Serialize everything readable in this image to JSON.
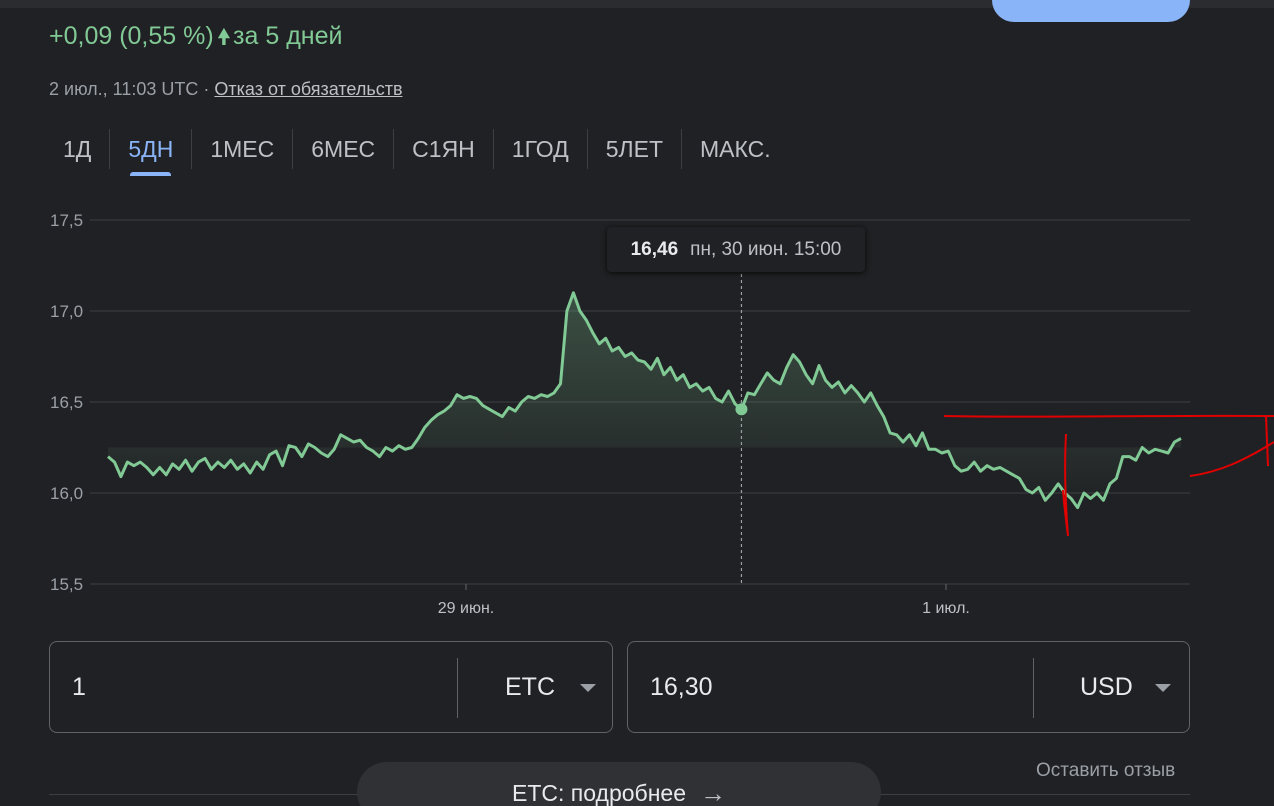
{
  "summary": {
    "change_text": "+0,09 (0,55 %)",
    "change_arrow": "arrow-up-icon",
    "change_period": "за 5 дней",
    "timestamp": "2 июл., 11:03 UTC",
    "separator": " · ",
    "disclaimer": "Отказ от обязательств"
  },
  "tabs": [
    {
      "label": "1Д",
      "active": false
    },
    {
      "label": "5ДН",
      "active": true
    },
    {
      "label": "1МЕС",
      "active": false
    },
    {
      "label": "6МЕС",
      "active": false
    },
    {
      "label": "С1ЯН",
      "active": false
    },
    {
      "label": "1ГОД",
      "active": false
    },
    {
      "label": "5ЛЕТ",
      "active": false
    },
    {
      "label": "МАКС.",
      "active": false
    }
  ],
  "tooltip": {
    "value": "16,46",
    "date": "пн, 30 июн. 15:00"
  },
  "chart_data": {
    "type": "area",
    "y_ticks": [
      "17,5",
      "17,0",
      "16,5",
      "16,0",
      "15,5"
    ],
    "ylim": [
      15.5,
      17.5
    ],
    "x_ticks": [
      "29 июн.",
      "1 июл."
    ],
    "series": [
      {
        "values": [
          16.2,
          16.17,
          16.09,
          16.17,
          16.15,
          16.17,
          16.14,
          16.1,
          16.14,
          16.1,
          16.16,
          16.13,
          16.18,
          16.12,
          16.17,
          16.19,
          16.13,
          16.17,
          16.14,
          16.18,
          16.13,
          16.16,
          16.11,
          16.17,
          16.13,
          16.21,
          16.23,
          16.15,
          16.26,
          16.25,
          16.2,
          16.27,
          16.25,
          16.22,
          16.2,
          16.24,
          16.32,
          16.3,
          16.28,
          16.29,
          16.25,
          16.23,
          16.2,
          16.25,
          16.23,
          16.26,
          16.24,
          16.25,
          16.3,
          16.36,
          16.4,
          16.43,
          16.45,
          16.48,
          16.54,
          16.52,
          16.53,
          16.52,
          16.48,
          16.46,
          16.44,
          16.42,
          16.47,
          16.45,
          16.5,
          16.53,
          16.52,
          16.54,
          16.53,
          16.55,
          16.6,
          17.0,
          17.1,
          17.0,
          16.95,
          16.88,
          16.82,
          16.85,
          16.78,
          16.8,
          16.75,
          16.77,
          16.73,
          16.72,
          16.68,
          16.74,
          16.65,
          16.69,
          16.62,
          16.65,
          16.58,
          16.6,
          16.56,
          16.58,
          16.52,
          16.5,
          16.56,
          16.49,
          16.46,
          16.55,
          16.54,
          16.6,
          16.66,
          16.62,
          16.6,
          16.69,
          16.76,
          16.72,
          16.65,
          16.6,
          16.7,
          16.62,
          16.58,
          16.61,
          16.55,
          16.59,
          16.55,
          16.5,
          16.55,
          16.48,
          16.42,
          16.33,
          16.32,
          16.28,
          16.32,
          16.26,
          16.33,
          16.24,
          16.24,
          16.22,
          16.23,
          16.15,
          16.12,
          16.13,
          16.17,
          16.12,
          16.15,
          16.13,
          16.14,
          16.12,
          16.1,
          16.08,
          16.02,
          16.0,
          16.03,
          15.96,
          16.0,
          16.05,
          16.0,
          15.97,
          15.92,
          16.0,
          15.97,
          16.0,
          15.96,
          16.05,
          16.08,
          16.2,
          16.2,
          16.18,
          16.25,
          16.22,
          16.24,
          16.23,
          16.22,
          16.28,
          16.3
        ],
        "highlight_index": 98
      }
    ],
    "grid": true,
    "colors": {
      "line": "#81c995",
      "grid": "#3c4043",
      "annotation": "#e00000"
    }
  },
  "converter": {
    "from_amount": "1",
    "from_currency": "ETC",
    "to_amount": "16,30",
    "to_currency": "USD"
  },
  "feedback_link": "Оставить отзыв",
  "more_button": {
    "label": "ETC: подробнее",
    "icon": "arrow-right-icon"
  }
}
